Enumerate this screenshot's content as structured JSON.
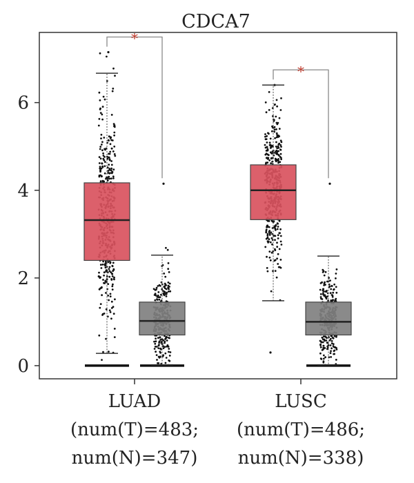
{
  "chart_data": {
    "type": "box",
    "title": "CDCA7",
    "xlabel": "",
    "ylabel": "",
    "ylim": [
      -0.3,
      7.6
    ],
    "y_ticks": [
      0,
      2,
      4,
      6
    ],
    "categories": [
      {
        "name": "LUAD",
        "line2": "(num(T)=483;",
        "line3": "num(N)=347)",
        "significance": "*"
      },
      {
        "name": "LUSC",
        "line2": "(num(T)=486;",
        "line3": "num(N)=338)",
        "significance": "*"
      }
    ],
    "series": [
      {
        "name": "",
        "group": "LUAD",
        "kind": "tumor",
        "color": "#d9525e",
        "n": 483,
        "whisker_low": 0.28,
        "q1": 2.4,
        "median": 3.32,
        "q3": 4.17,
        "whisker_high": 6.67,
        "outlier_max": 7.15
      },
      {
        "name": "",
        "group": "LUAD",
        "kind": "normal",
        "color": "#808080",
        "n": 347,
        "whisker_low": 0.02,
        "q1": 0.7,
        "median": 1.02,
        "q3": 1.45,
        "whisker_high": 2.52,
        "outlier_max": 4.15
      },
      {
        "name": "",
        "group": "LUSC",
        "kind": "tumor",
        "color": "#d9525e",
        "n": 486,
        "whisker_low": 1.48,
        "q1": 3.33,
        "median": 4.0,
        "q3": 4.58,
        "whisker_high": 6.4,
        "outlier_max": 6.4,
        "outlier_min": 0.3
      },
      {
        "name": "",
        "group": "LUSC",
        "kind": "normal",
        "color": "#808080",
        "n": 338,
        "whisker_low": 0.02,
        "q1": 0.7,
        "median": 1.0,
        "q3": 1.45,
        "whisker_high": 2.5,
        "outlier_max": 4.15
      }
    ]
  }
}
